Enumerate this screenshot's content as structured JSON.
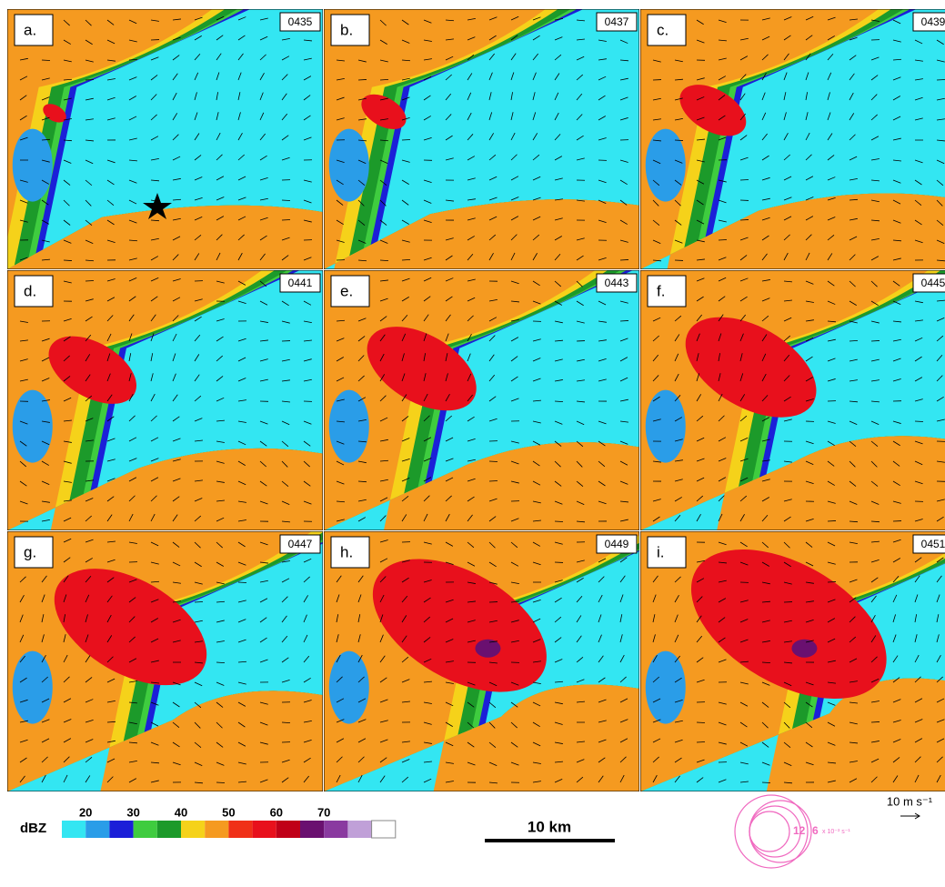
{
  "panels": [
    {
      "label": "a.",
      "time": "0435"
    },
    {
      "label": "b.",
      "time": "0437"
    },
    {
      "label": "c.",
      "time": "0439"
    },
    {
      "label": "d.",
      "time": "0441"
    },
    {
      "label": "e.",
      "time": "0443"
    },
    {
      "label": "f.",
      "time": "0445"
    },
    {
      "label": "g.",
      "time": "0447"
    },
    {
      "label": "h.",
      "time": "0449"
    },
    {
      "label": "i.",
      "time": "0451"
    }
  ],
  "colorbar": {
    "label": "dBZ",
    "ticks": [
      "20",
      "30",
      "40",
      "50",
      "60",
      "70"
    ]
  },
  "scale_bar": "10 km",
  "wind_reference": "10 m s⁻¹",
  "vorticity_legend": {
    "labels": [
      "12",
      "6"
    ],
    "unit": "x 10⁻³ s⁻¹"
  }
}
